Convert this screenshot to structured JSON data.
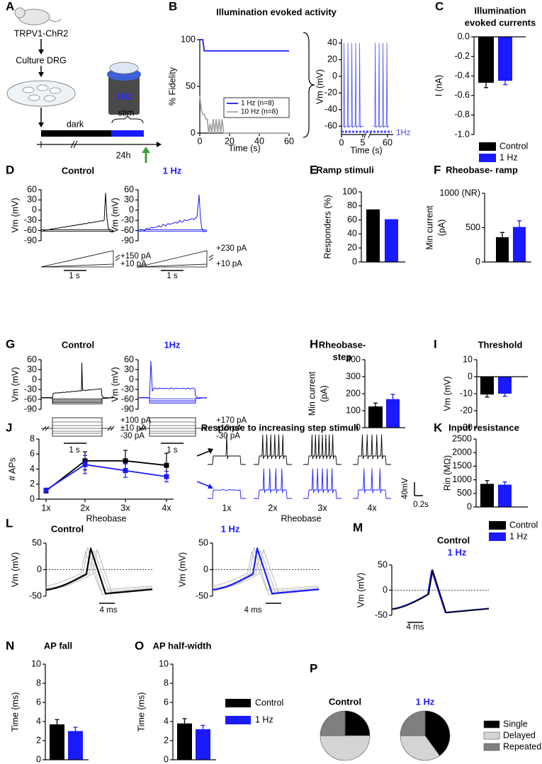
{
  "figure": {
    "panel_labels": [
      "A",
      "B",
      "C",
      "D",
      "E",
      "F",
      "G",
      "H",
      "I",
      "J",
      "K",
      "L",
      "M",
      "N",
      "O",
      "P"
    ],
    "panel_a": {
      "mouse_line": "TRPV1-ChR2",
      "culture": "Culture DRG",
      "device": "1Hz",
      "stim": "stim",
      "dark": "dark",
      "time": "24h"
    }
  },
  "chart_data": [
    {
      "type": "line",
      "title": "Illumination evoked activity",
      "xlabel": "Time (s)",
      "ylabel": "% Fidelity",
      "xlim": [
        0,
        60
      ],
      "xticks": [
        0,
        20,
        40,
        60
      ],
      "ylim": [
        0,
        100
      ],
      "yticks": [
        0,
        50,
        100
      ],
      "legend": "lower right",
      "series": [
        {
          "name": "1 Hz (n=8)",
          "color": "#1a1aff",
          "x": [
            0,
            2,
            3,
            60
          ],
          "values": [
            100,
            100,
            88,
            88
          ]
        },
        {
          "name": "10 Hz (n=8)",
          "color": "#a6a6a6",
          "x": [
            0,
            1,
            2,
            3,
            4,
            5,
            6,
            7,
            8,
            9,
            10,
            11,
            12,
            13,
            14,
            15,
            16,
            17,
            60
          ],
          "values": [
            40,
            25,
            20,
            20,
            15,
            15,
            0,
            10,
            0,
            15,
            0,
            15,
            0,
            15,
            0,
            15,
            0,
            0,
            0
          ]
        }
      ]
    },
    {
      "type": "trace",
      "xlabel": "Time (s)",
      "ylabel": "Vm (mV)",
      "xlim": [
        0,
        60
      ],
      "xticks": [
        0,
        5,
        60
      ],
      "ylim": [
        -70,
        45
      ],
      "yticks": [
        -60,
        -40,
        -20,
        0,
        20,
        40
      ],
      "annotations": [
        "1Hz"
      ],
      "color": "#4a4aff"
    },
    {
      "type": "bar",
      "title": [
        "Illumination",
        "evoked currents"
      ],
      "ylabel": "I (nA)",
      "ylim": [
        -1,
        0
      ],
      "yticks": [
        {
          "value": 0,
          "label": "0.0"
        },
        -0.2,
        -0.4,
        -0.6,
        -0.8,
        {
          "value": -1,
          "label": "-1.0"
        }
      ],
      "legend": "below",
      "series": [
        {
          "name": "Control",
          "color": "#000000",
          "values": [
            -0.47
          ],
          "errors": [
            0.05
          ]
        },
        {
          "name": "1 Hz",
          "color": "#1a1aff",
          "values": [
            -0.45
          ],
          "errors": [
            0.04
          ]
        }
      ]
    },
    {
      "type": "trace",
      "title": "Control",
      "ylabel": "Vm (mV)",
      "ylim": [
        -90,
        60
      ],
      "yticks": [
        -90,
        -60,
        -30,
        0,
        30,
        60
      ],
      "annotations": [
        "+150 pA",
        "+10 pA",
        "1 s"
      ],
      "color": "#000000"
    },
    {
      "type": "trace",
      "title": "1 Hz",
      "ylabel": "Vm (mV)",
      "ylim": [
        -90,
        60
      ],
      "yticks": [
        -90,
        -60,
        -30,
        0,
        30,
        60
      ],
      "annotations": [
        "+230 pA",
        "+10 pA",
        "1 s"
      ],
      "color": "#1a1aff"
    },
    {
      "type": "bar",
      "title": "Ramp stimuli",
      "ylabel": "Responders (%)",
      "ylim": [
        0,
        100
      ],
      "yticks": [
        0,
        20,
        40,
        60,
        80,
        100
      ],
      "values": [
        75,
        61
      ],
      "colors": [
        "#000000",
        "#1a1aff"
      ]
    },
    {
      "type": "bar",
      "title": "Rheobase- ramp",
      "ylabel": [
        "Min current",
        "(pA)"
      ],
      "ylim": [
        0,
        1000
      ],
      "yticks": [
        0,
        500,
        {
          "value": 1000,
          "label": "1000 (NR)"
        }
      ],
      "values": [
        360,
        510
      ],
      "errors": [
        70,
        90
      ],
      "colors": [
        "#000000",
        "#1a1aff"
      ]
    },
    {
      "type": "trace",
      "title": "Control",
      "ylabel": "Vm (mV)",
      "ylim": [
        -90,
        60
      ],
      "yticks": [
        -90,
        -60,
        -30,
        0,
        30,
        60
      ],
      "annotations": [
        "+100 pA",
        "±10 pA",
        "-30 pA",
        "1 s"
      ],
      "color": "#000000"
    },
    {
      "type": "trace",
      "title": "1Hz",
      "ylabel": "Vm (mV)",
      "ylim": [
        -90,
        60
      ],
      "yticks": [
        -90,
        -60,
        -30,
        0,
        30,
        60
      ],
      "annotations": [
        "+170 pA",
        "±10 pA",
        "-30 pA",
        "1 s"
      ],
      "color": "#1a1aff"
    },
    {
      "type": "bar",
      "title": [
        "Rheobase-",
        "step"
      ],
      "ylabel": [
        "Min current",
        "(pA)"
      ],
      "ylim": [
        0,
        400
      ],
      "yticks": [
        0,
        100,
        200,
        300,
        400
      ],
      "values": [
        125,
        168
      ],
      "errors": [
        20,
        28
      ],
      "colors": [
        "#000000",
        "#1a1aff"
      ]
    },
    {
      "type": "bar",
      "title": "Threshold",
      "ylabel": "Vm (mV)",
      "ylim": [
        -30,
        10
      ],
      "yticks": [
        -30,
        -20,
        -10,
        0,
        10
      ],
      "values": [
        -10.5,
        -10
      ],
      "errors": [
        1.5,
        1.5
      ],
      "colors": [
        "#000000",
        "#1a1aff"
      ]
    },
    {
      "type": "errorline",
      "title": "Response to increasing step stimuli",
      "xlabel": "Rheobase",
      "ylabel": "# APs",
      "categories": [
        "1x",
        "2x",
        "3x",
        "4x"
      ],
      "ylim": [
        0,
        8
      ],
      "yticks": [
        0,
        2,
        4,
        6,
        8
      ],
      "series": [
        {
          "name": "Control",
          "color": "#000000",
          "values": [
            1.1,
            5.1,
            5.1,
            4.5
          ],
          "errors": [
            0.1,
            1.2,
            1.4,
            1.6
          ]
        },
        {
          "name": "1 Hz",
          "color": "#1a1aff",
          "values": [
            1.2,
            4.6,
            3.8,
            3.0
          ],
          "errors": [
            0.1,
            1.2,
            0.9,
            0.7
          ]
        }
      ]
    },
    {
      "type": "trace",
      "categories": [
        "1x",
        "2x",
        "3x",
        "4x"
      ],
      "xlabel": "Rheobase",
      "annotations": [
        "40mV",
        "0.2s"
      ],
      "colors": [
        "#000000",
        "#1a1aff"
      ]
    },
    {
      "type": "bar",
      "title": "Input resistance",
      "ylabel": "Rin (MΩ)",
      "ylim": [
        0,
        2500
      ],
      "yticks": [
        0,
        500,
        1000,
        1500,
        2000,
        2500
      ],
      "legend": "below",
      "series": [
        {
          "name": "Control",
          "color": "#000000",
          "values": [
            850
          ],
          "errors": [
            120
          ]
        },
        {
          "name": "1 Hz",
          "color": "#1a1aff",
          "values": [
            820
          ],
          "errors": [
            100
          ]
        }
      ]
    },
    {
      "type": "trace",
      "title": "Control",
      "ylabel": "Vm (mV)",
      "ylim": [
        -50,
        50
      ],
      "yticks": [
        -50,
        0,
        50
      ],
      "annotations": [
        "4 ms"
      ],
      "color": "#000000"
    },
    {
      "type": "trace",
      "title": "1 Hz",
      "ylabel": "Vm (mV)",
      "ylim": [
        -50,
        50
      ],
      "yticks": [
        -50,
        0,
        50
      ],
      "annotations": [
        "4 ms"
      ],
      "color": "#1a1aff"
    },
    {
      "type": "trace",
      "title": "Control",
      "subtitle": "1 Hz",
      "ylabel": "Vm (mV)",
      "ylim": [
        -50,
        50
      ],
      "yticks": [
        -50,
        0,
        50
      ],
      "annotations": [
        "4 ms"
      ],
      "colors": [
        "#000000",
        "#1a1aff"
      ]
    },
    {
      "type": "bar",
      "title": "AP fall",
      "ylabel": "Time (ms)",
      "ylim": [
        0,
        10
      ],
      "yticks": [
        0,
        2,
        4,
        6,
        8,
        10
      ],
      "values": [
        3.7,
        3.0
      ],
      "errors": [
        0.5,
        0.4
      ],
      "colors": [
        "#000000",
        "#1a1aff"
      ]
    },
    {
      "type": "bar",
      "title": "AP half-width",
      "ylabel": "Time (ms)",
      "ylim": [
        0,
        10
      ],
      "yticks": [
        0,
        2,
        4,
        6,
        8,
        10
      ],
      "legend": "right",
      "series": [
        {
          "name": "Control",
          "color": "#000000",
          "values": [
            3.8
          ],
          "errors": [
            0.5
          ]
        },
        {
          "name": "1 Hz",
          "color": "#1a1aff",
          "values": [
            3.2
          ],
          "errors": [
            0.4
          ]
        }
      ]
    },
    {
      "type": "pie",
      "title": "Control",
      "title_color": "#000000",
      "legend": "right",
      "categories": [
        "Single",
        "Delayed",
        "Repeated"
      ],
      "values": [
        25,
        50,
        25
      ],
      "colors": [
        "#000000",
        "#d4d4d4",
        "#7f7f7f"
      ]
    },
    {
      "type": "pie",
      "title": "1 Hz",
      "title_color": "#1a1aff",
      "values": [
        40,
        35,
        25
      ],
      "colors": [
        "#000000",
        "#d4d4d4",
        "#7f7f7f"
      ]
    }
  ]
}
